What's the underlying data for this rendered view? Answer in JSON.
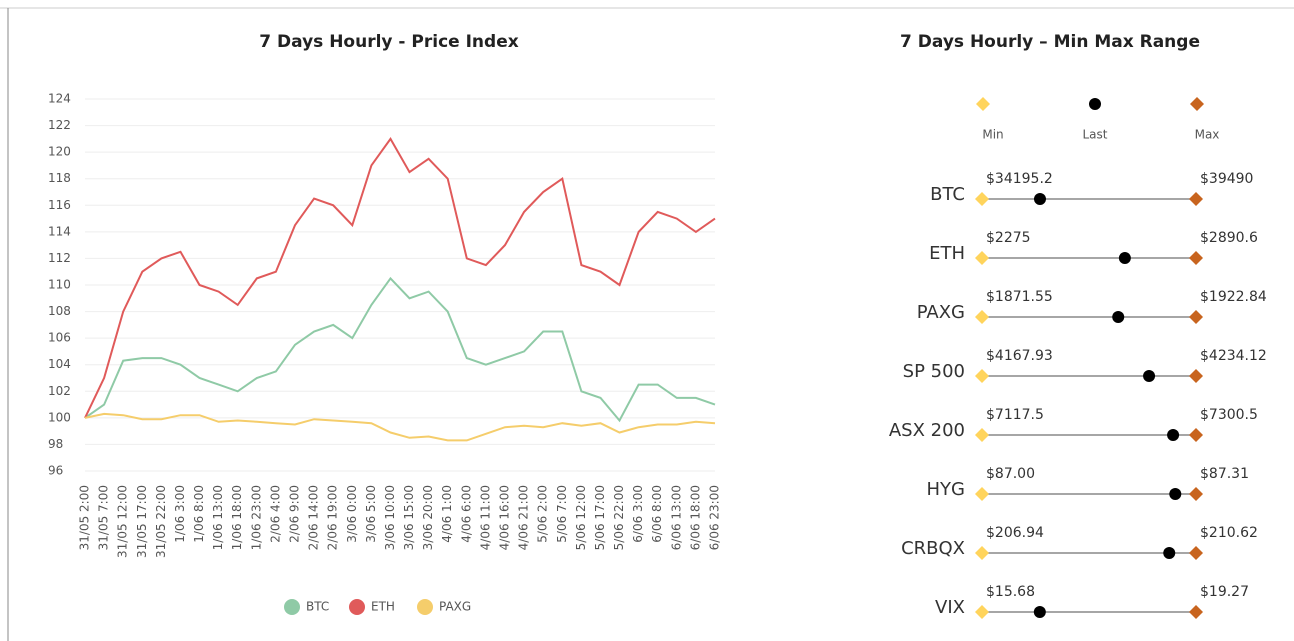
{
  "chart_data": [
    {
      "type": "line",
      "title": "7 Days Hourly - Price Index",
      "categories": [
        "31/05 2:00",
        "31/05 7:00",
        "31/05 12:00",
        "31/05 17:00",
        "31/05 22:00",
        "1/06 3:00",
        "1/06 8:00",
        "1/06 13:00",
        "1/06 18:00",
        "1/06 23:00",
        "2/06 4:00",
        "2/06 9:00",
        "2/06 14:00",
        "2/06 19:00",
        "3/06 0:00",
        "3/06 5:00",
        "3/06 10:00",
        "3/06 15:00",
        "3/06 20:00",
        "4/06 1:00",
        "4/06 6:00",
        "4/06 11:00",
        "4/06 16:00",
        "4/06 21:00",
        "5/06 2:00",
        "5/06 7:00",
        "5/06 12:00",
        "5/06 17:00",
        "5/06 22:00",
        "6/06 3:00",
        "6/06 8:00",
        "6/06 13:00",
        "6/06 18:00",
        "6/06 23:00"
      ],
      "series": [
        {
          "name": "BTC",
          "color": "#8fcaa6",
          "values": [
            100,
            101,
            104.3,
            104.5,
            104.5,
            104,
            103,
            102.5,
            102,
            103,
            103.5,
            105.5,
            106.5,
            107,
            106,
            108.5,
            110.5,
            109,
            109.5,
            108,
            104.5,
            104,
            104.5,
            105,
            106.5,
            106.5,
            102,
            101.5,
            99.8,
            102.5,
            102.5,
            101.5,
            101.5,
            101
          ]
        },
        {
          "name": "ETH",
          "color": "#e05a5a",
          "values": [
            100,
            103,
            108,
            111,
            112,
            112.5,
            110,
            109.5,
            108.5,
            110.5,
            111,
            114.5,
            116.5,
            116,
            114.5,
            119,
            121,
            118.5,
            119.5,
            118,
            112,
            111.5,
            113,
            115.5,
            117,
            118,
            111.5,
            111,
            110,
            114,
            115.5,
            115,
            114,
            115
          ]
        },
        {
          "name": "PAXG",
          "color": "#f5cd6b",
          "values": [
            100,
            100.3,
            100.2,
            99.9,
            99.9,
            100.2,
            100.2,
            99.7,
            99.8,
            99.7,
            99.6,
            99.5,
            99.9,
            99.8,
            99.7,
            99.6,
            98.9,
            98.5,
            98.6,
            98.3,
            98.3,
            98.8,
            99.3,
            99.4,
            99.3,
            99.6,
            99.4,
            99.6,
            98.9,
            99.3,
            99.5,
            99.5,
            99.7,
            99.6
          ]
        }
      ],
      "ylim": [
        96,
        124
      ],
      "yticks": [
        96,
        98,
        100,
        102,
        104,
        106,
        108,
        110,
        112,
        114,
        116,
        118,
        120,
        122,
        124
      ],
      "grid": true,
      "legend": "bottom"
    },
    {
      "type": "range",
      "title": "7 Days Hourly – Min Max Range",
      "legend": [
        {
          "name": "Min",
          "color": "#ffd45c"
        },
        {
          "name": "Last",
          "color": "#000000"
        },
        {
          "name": "Max",
          "color": "#c8641e"
        }
      ],
      "items": [
        {
          "name": "BTC",
          "min": 34195.2,
          "min_label": "$34195.2",
          "last": 35630,
          "max": 39490,
          "max_label": "$39490"
        },
        {
          "name": "ETH",
          "min": 2275,
          "min_label": "$2275",
          "last": 2686,
          "max": 2890.6,
          "max_label": "$2890.6"
        },
        {
          "name": "PAXG",
          "min": 1871.55,
          "min_label": "$1871.55",
          "last": 1904.2,
          "max": 1922.84,
          "max_label": "$1922.84"
        },
        {
          "name": "SP 500",
          "min": 4167.93,
          "min_label": "$4167.93",
          "last": 4219.6,
          "max": 4234.12,
          "max_label": "$4234.12"
        },
        {
          "name": "ASX 200",
          "min": 7117.5,
          "min_label": "$7117.5",
          "last": 7280.9,
          "max": 7300.5,
          "max_label": "$7300.5"
        },
        {
          "name": "HYG",
          "min": 87.0,
          "min_label": "$87.00",
          "last": 87.28,
          "max": 87.31,
          "max_label": "$87.31"
        },
        {
          "name": "CRBQX",
          "min": 206.94,
          "min_label": "$206.94",
          "last": 210.16,
          "max": 210.62,
          "max_label": "$210.62"
        },
        {
          "name": "VIX",
          "min": 15.68,
          "min_label": "$15.68",
          "last": 16.65,
          "max": 19.27,
          "max_label": "$19.27"
        }
      ]
    }
  ]
}
